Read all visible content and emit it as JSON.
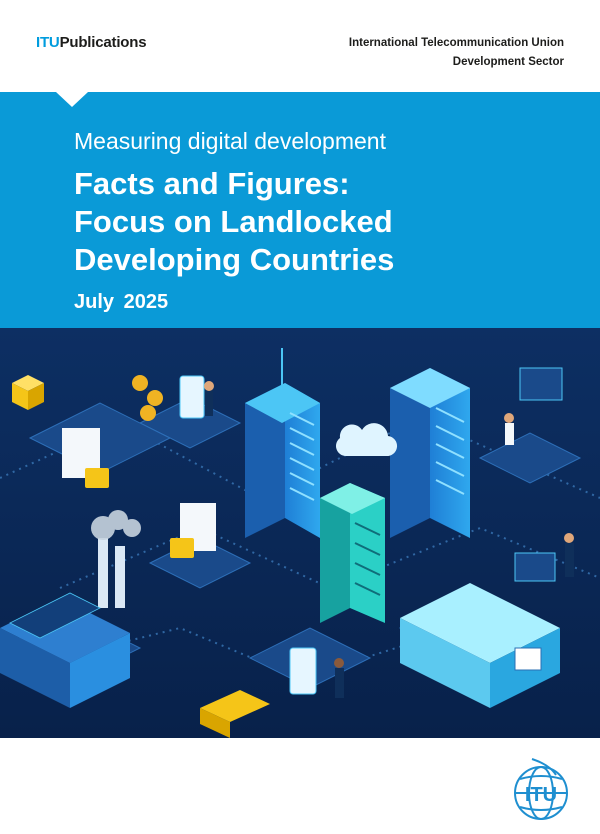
{
  "header": {
    "brand_prefix": "ITU",
    "brand_suffix": "Publications",
    "org_line1": "International Telecommunication Union",
    "org_line2": "Development Sector"
  },
  "banner": {
    "subtitle": "Measuring digital development",
    "title_line1": "Facts and Figures:",
    "title_line2": "Focus on Landlocked",
    "title_line3": "Developing Countries",
    "date": "July 2025",
    "color": "#0a9ad7"
  },
  "illustration": {
    "icon": "smart-city-isometric-illustration",
    "background_color": "#0b2a5a",
    "accent_color": "#3fc4f0"
  },
  "footer": {
    "logo_text": "ITU",
    "logo_icon": "itu-globe-logo-icon"
  }
}
